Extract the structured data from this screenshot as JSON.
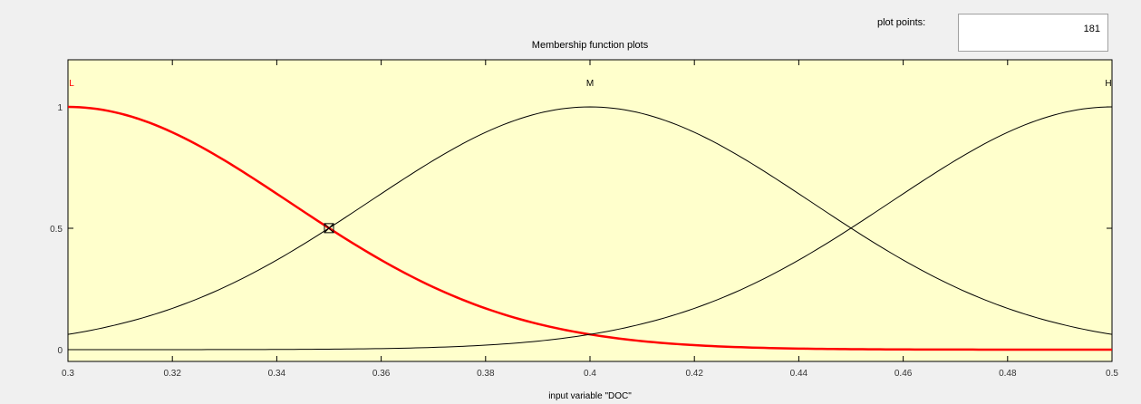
{
  "title": "Membership function plots",
  "plot_points": {
    "label": "plot points:",
    "value": "181"
  },
  "colors": {
    "background": "#ffffcc",
    "selected": "#ff0000",
    "curve": "#000000"
  },
  "chart_data": {
    "type": "line",
    "title": "Membership function plots",
    "xlabel": "input variable \"DOC\"",
    "ylabel": "",
    "xlim": [
      0.3,
      0.5
    ],
    "ylim": [
      0,
      1
    ],
    "xticks": [
      "0.3",
      "0.32",
      "0.34",
      "0.36",
      "0.38",
      "0.4",
      "0.42",
      "0.44",
      "0.46",
      "0.48",
      "0.5"
    ],
    "yticks": [
      "0",
      "0.5",
      "1"
    ],
    "grid": false,
    "series": [
      {
        "name": "L",
        "shape": "gaussian",
        "center": 0.3,
        "sigma": 0.0425,
        "selected": true
      },
      {
        "name": "M",
        "shape": "gaussian",
        "center": 0.4,
        "sigma": 0.0425,
        "selected": false
      },
      {
        "name": "H",
        "shape": "gaussian",
        "center": 0.5,
        "sigma": 0.0425,
        "selected": false
      }
    ]
  }
}
